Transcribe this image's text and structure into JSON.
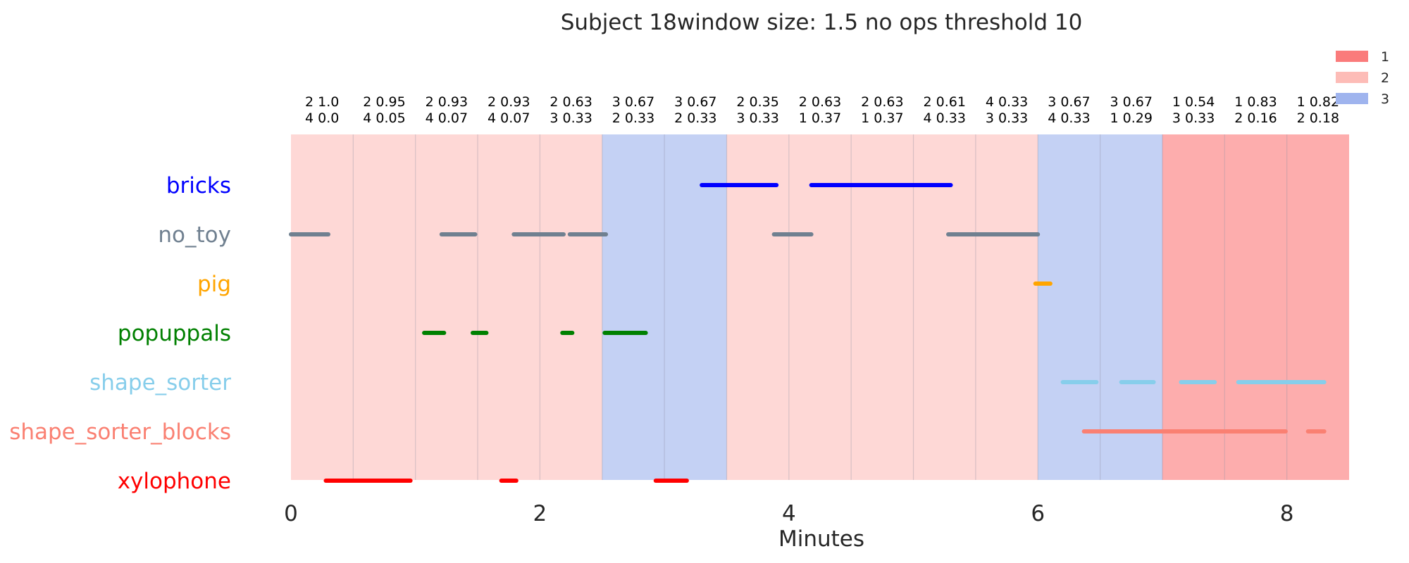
{
  "chart_data": {
    "type": "timeline",
    "title": "Subject 18window size: 1.5 no ops threshold 10",
    "xlabel": "Minutes",
    "ylabel": "",
    "xlim": [
      0,
      8.5
    ],
    "xticks": [
      "0",
      "2",
      "4",
      "6",
      "8"
    ],
    "xtick_values": [
      0,
      2,
      4,
      6,
      8
    ],
    "grid": false,
    "legend_position": "top-right",
    "legend": [
      {
        "label": "1",
        "color": "#fa7b7b"
      },
      {
        "label": "2",
        "color": "#fdbcb7"
      },
      {
        "label": "3",
        "color": "#9fb4ee"
      }
    ],
    "state_colors": {
      "1": "#fdadad",
      "2": "#fed8d6",
      "3": "#c4d1f4"
    },
    "windows": [
      {
        "start": 0.0,
        "end": 0.5,
        "state": "2",
        "line1": "2 1.0",
        "line2": "4 0.0"
      },
      {
        "start": 0.5,
        "end": 1.0,
        "state": "2",
        "line1": "2 0.95",
        "line2": "4 0.05"
      },
      {
        "start": 1.0,
        "end": 1.5,
        "state": "2",
        "line1": "2 0.93",
        "line2": "4 0.07"
      },
      {
        "start": 1.5,
        "end": 2.0,
        "state": "2",
        "line1": "2 0.93",
        "line2": "4 0.07"
      },
      {
        "start": 2.0,
        "end": 2.5,
        "state": "2",
        "line1": "2 0.63",
        "line2": "3 0.33"
      },
      {
        "start": 2.5,
        "end": 3.0,
        "state": "3",
        "line1": "3 0.67",
        "line2": "2 0.33"
      },
      {
        "start": 3.0,
        "end": 3.5,
        "state": "3",
        "line1": "3 0.67",
        "line2": "2 0.33"
      },
      {
        "start": 3.5,
        "end": 4.0,
        "state": "2",
        "line1": "2 0.35",
        "line2": "3 0.33"
      },
      {
        "start": 4.0,
        "end": 4.5,
        "state": "2",
        "line1": "2 0.63",
        "line2": "1 0.37"
      },
      {
        "start": 4.5,
        "end": 5.0,
        "state": "2",
        "line1": "2 0.63",
        "line2": "1 0.37"
      },
      {
        "start": 5.0,
        "end": 5.5,
        "state": "2",
        "line1": "2 0.61",
        "line2": "4 0.33"
      },
      {
        "start": 5.5,
        "end": 6.0,
        "state": "2",
        "line1": "4 0.33",
        "line2": "3 0.33"
      },
      {
        "start": 6.0,
        "end": 6.5,
        "state": "3",
        "line1": "3 0.67",
        "line2": "4 0.33"
      },
      {
        "start": 6.5,
        "end": 7.0,
        "state": "3",
        "line1": "3 0.67",
        "line2": "1 0.29"
      },
      {
        "start": 7.0,
        "end": 7.5,
        "state": "1",
        "line1": "1 0.54",
        "line2": "3 0.33"
      },
      {
        "start": 7.5,
        "end": 8.0,
        "state": "1",
        "line1": "1 0.83",
        "line2": "2 0.16"
      },
      {
        "start": 8.0,
        "end": 8.5,
        "state": "1",
        "line1": "1 0.82",
        "line2": "2 0.18"
      }
    ],
    "categories": [
      "bricks",
      "no_toy",
      "pig",
      "popuppals",
      "shape_sorter",
      "shape_sorter_blocks",
      "xylophone"
    ],
    "series": [
      {
        "name": "bricks",
        "color": "#0000ff",
        "segments": [
          [
            3.3,
            3.9
          ],
          [
            4.18,
            5.3
          ]
        ]
      },
      {
        "name": "no_toy",
        "color": "#708090",
        "segments": [
          [
            0.0,
            0.3
          ],
          [
            1.21,
            1.48
          ],
          [
            1.79,
            2.19
          ],
          [
            2.24,
            2.53
          ],
          [
            3.88,
            4.18
          ],
          [
            5.28,
            6.0
          ]
        ]
      },
      {
        "name": "pig",
        "color": "#ffa500",
        "segments": [
          [
            5.98,
            6.1
          ]
        ]
      },
      {
        "name": "popuppals",
        "color": "#008000",
        "segments": [
          [
            1.07,
            1.23
          ],
          [
            1.46,
            1.57
          ],
          [
            2.18,
            2.26
          ],
          [
            2.52,
            2.85
          ]
        ]
      },
      {
        "name": "shape_sorter",
        "color": "#87ceeb",
        "segments": [
          [
            6.2,
            6.47
          ],
          [
            6.67,
            6.93
          ],
          [
            7.15,
            7.42
          ],
          [
            7.61,
            8.3
          ]
        ]
      },
      {
        "name": "shape_sorter_blocks",
        "color": "#fa8072",
        "segments": [
          [
            6.37,
            7.99
          ],
          [
            8.17,
            8.3
          ]
        ]
      },
      {
        "name": "xylophone",
        "color": "#ff0000",
        "segments": [
          [
            0.28,
            0.96
          ],
          [
            1.69,
            1.81
          ],
          [
            2.93,
            3.18
          ]
        ]
      }
    ]
  }
}
